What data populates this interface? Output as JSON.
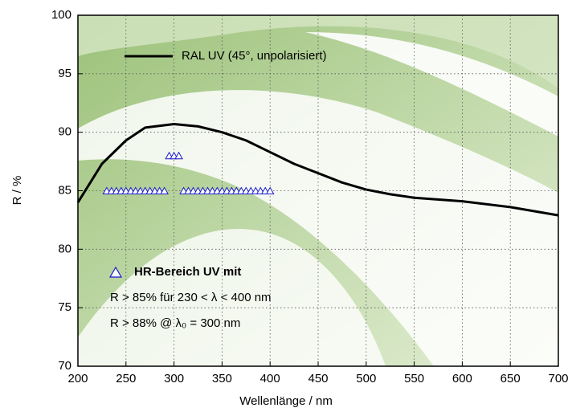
{
  "chart_data": {
    "type": "line",
    "xlabel": "Wellenlänge / nm",
    "ylabel": "R / %",
    "xlim": [
      200,
      700
    ],
    "ylim": [
      70,
      100
    ],
    "xticks": [
      200,
      250,
      300,
      350,
      400,
      450,
      500,
      550,
      600,
      650,
      700
    ],
    "yticks": [
      70,
      75,
      80,
      85,
      90,
      95,
      100
    ],
    "grid": true,
    "series": [
      {
        "name": "RAL UV (45°, unpolarisiert)",
        "type": "line",
        "color": "#000000",
        "x": [
          200,
          225,
          250,
          270,
          300,
          325,
          350,
          375,
          400,
          425,
          450,
          475,
          500,
          525,
          550,
          600,
          650,
          700
        ],
        "values": [
          84,
          87.3,
          89.3,
          90.4,
          90.7,
          90.5,
          90.0,
          89.3,
          88.3,
          87.3,
          86.5,
          85.7,
          85.1,
          84.7,
          84.4,
          84.1,
          83.6,
          82.9
        ]
      },
      {
        "name": "HR-Bereich UV mit",
        "type": "scatter",
        "color": "#1a1acc",
        "x": [
          230,
          235,
          240,
          245,
          250,
          255,
          260,
          265,
          270,
          275,
          280,
          285,
          290,
          310,
          315,
          320,
          325,
          330,
          335,
          340,
          345,
          350,
          355,
          360,
          365,
          370,
          375,
          380,
          385,
          390,
          395,
          400,
          295,
          300,
          305
        ],
        "values": [
          85,
          85,
          85,
          85,
          85,
          85,
          85,
          85,
          85,
          85,
          85,
          85,
          85,
          85,
          85,
          85,
          85,
          85,
          85,
          85,
          85,
          85,
          85,
          85,
          85,
          85,
          85,
          85,
          85,
          85,
          85,
          85,
          88,
          88,
          88
        ]
      }
    ],
    "annotations": [
      "R > 85% für 230 < λ < 400 nm",
      "R > 88% @ λ₀ = 300 nm"
    ]
  }
}
